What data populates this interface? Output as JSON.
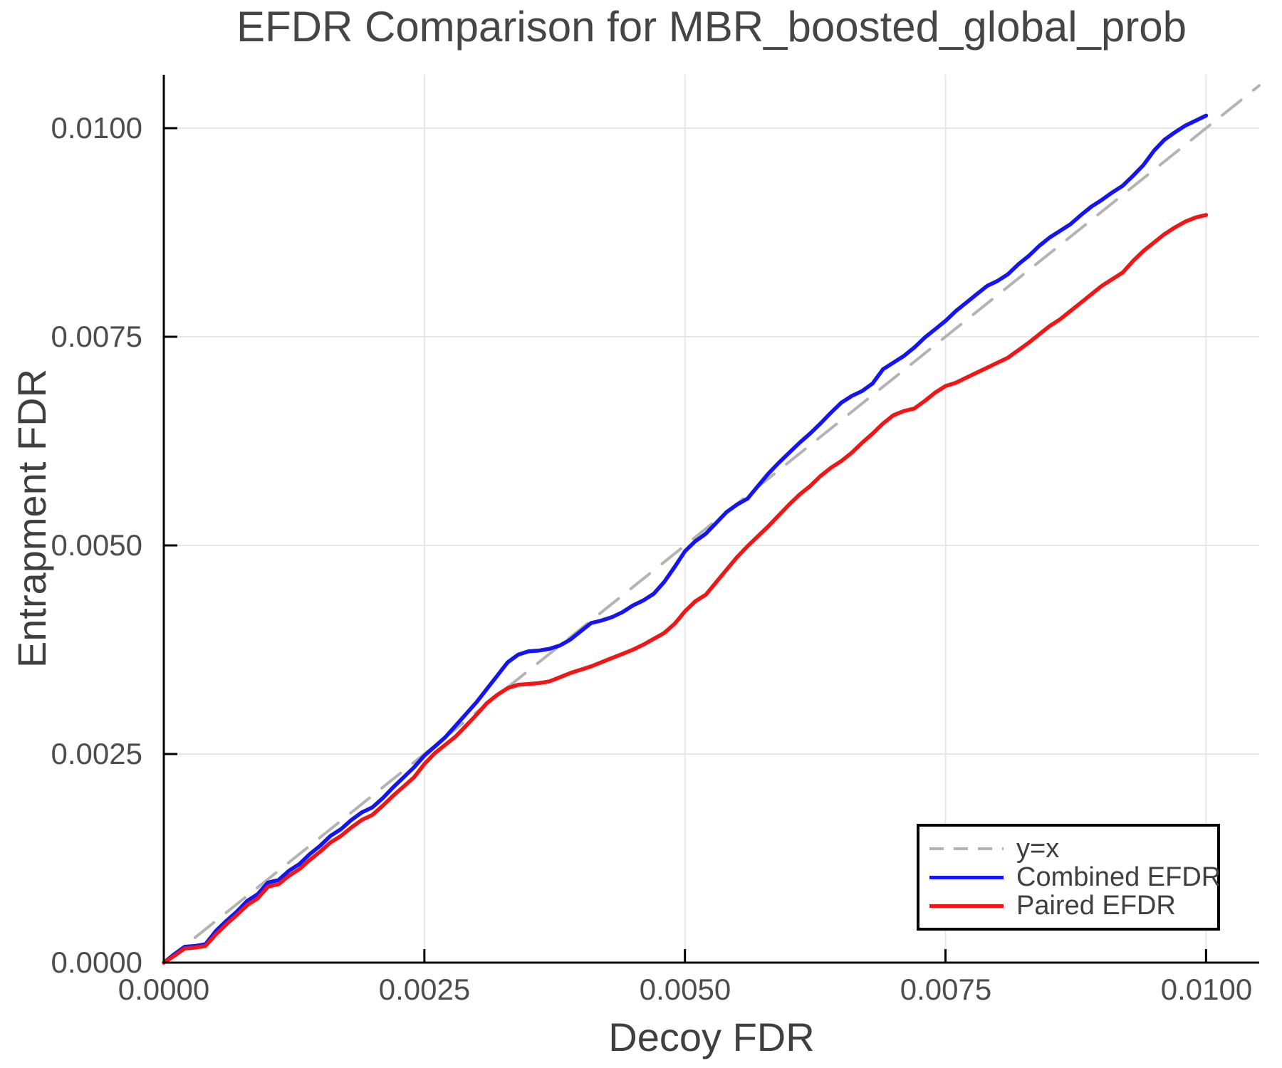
{
  "chart_data": {
    "type": "line",
    "title": "EFDR Comparison for MBR_boosted_global_prob",
    "xlabel": "Decoy FDR",
    "ylabel": "Entrapment FDR",
    "xlim": [
      0,
      0.01051
    ],
    "ylim": [
      0,
      0.01064
    ],
    "grid": true,
    "legend_position": "lower right",
    "x_ticks": [
      0,
      0.0025,
      0.005,
      0.0075,
      0.01
    ],
    "x_tick_labels": [
      "0.0000",
      "0.0025",
      "0.0050",
      "0.0075",
      "0.0100"
    ],
    "y_ticks": [
      0,
      0.0025,
      0.005,
      0.0075,
      0.01
    ],
    "y_tick_labels": [
      "0.0000",
      "0.0025",
      "0.0050",
      "0.0075",
      "0.0100"
    ],
    "colors": {
      "grid": "#e7e7e7",
      "spine": "#000000",
      "tick_text": "#4d4d4d",
      "reference": "#b3b3b3",
      "combined": "#1414f5",
      "paired": "#f51414"
    },
    "x": [
      0.0,
      0.0001,
      0.0002,
      0.0003,
      0.0004,
      0.0005,
      0.0006,
      0.0007,
      0.0008,
      0.0009,
      0.001,
      0.0011,
      0.0012,
      0.0013,
      0.0014,
      0.0015,
      0.0016,
      0.0017,
      0.0018,
      0.0019,
      0.002,
      0.0021,
      0.0022,
      0.0023,
      0.0024,
      0.0025,
      0.0026,
      0.0027,
      0.0028,
      0.0029,
      0.003,
      0.0031,
      0.0032,
      0.0033,
      0.0034,
      0.0035,
      0.0036,
      0.0037,
      0.0038,
      0.0039,
      0.004,
      0.0041,
      0.0042,
      0.0043,
      0.0044,
      0.0045,
      0.0046,
      0.0047,
      0.0048,
      0.0049,
      0.005,
      0.0051,
      0.0052,
      0.0053,
      0.0054,
      0.0055,
      0.0056,
      0.0057,
      0.0058,
      0.0059,
      0.006,
      0.0061,
      0.0062,
      0.0063,
      0.0064,
      0.0065,
      0.0066,
      0.0067,
      0.0068,
      0.0069,
      0.007,
      0.0071,
      0.0072,
      0.0073,
      0.0074,
      0.0075,
      0.0076,
      0.0077,
      0.0078,
      0.0079,
      0.008,
      0.0081,
      0.0082,
      0.0083,
      0.0084,
      0.0085,
      0.0086,
      0.0087,
      0.0088,
      0.0089,
      0.009,
      0.0091,
      0.0092,
      0.0093,
      0.0094,
      0.0095,
      0.0096,
      0.0097,
      0.0098,
      0.0099,
      0.01
    ],
    "series": [
      {
        "name": "y=x",
        "role": "reference",
        "style": "dashed",
        "color": "#b3b3b3",
        "width": 4,
        "dash": "34 22",
        "x": [
          0,
          0.01051
        ],
        "y": [
          0,
          0.01051
        ]
      },
      {
        "name": "Combined EFDR",
        "role": "data",
        "style": "solid",
        "color": "#1414f5",
        "width": 5.5,
        "y": [
          0.0,
          0.0001,
          0.00019,
          0.0002,
          0.00022,
          0.00038,
          0.0005,
          0.00061,
          0.00074,
          0.00082,
          0.00096,
          0.00099,
          0.0011,
          0.00118,
          0.0013,
          0.0014,
          0.00152,
          0.0016,
          0.00171,
          0.0018,
          0.00186,
          0.00197,
          0.0021,
          0.00222,
          0.00234,
          0.00248,
          0.00259,
          0.0027,
          0.00284,
          0.00298,
          0.00312,
          0.00328,
          0.00344,
          0.0036,
          0.00369,
          0.00373,
          0.00374,
          0.00376,
          0.0038,
          0.00387,
          0.00397,
          0.00407,
          0.0041,
          0.00414,
          0.0042,
          0.00428,
          0.00434,
          0.00442,
          0.00456,
          0.00474,
          0.00493,
          0.00505,
          0.00514,
          0.00527,
          0.0054,
          0.00549,
          0.00556,
          0.00571,
          0.00586,
          0.00599,
          0.00611,
          0.00623,
          0.00634,
          0.00646,
          0.00659,
          0.00671,
          0.00679,
          0.00685,
          0.00694,
          0.00711,
          0.00719,
          0.00727,
          0.00737,
          0.00749,
          0.00759,
          0.00769,
          0.00781,
          0.00791,
          0.00801,
          0.00811,
          0.00817,
          0.00825,
          0.00837,
          0.00847,
          0.00859,
          0.00869,
          0.00877,
          0.00885,
          0.00896,
          0.00906,
          0.00914,
          0.00923,
          0.00931,
          0.00943,
          0.00956,
          0.00973,
          0.00986,
          0.00995,
          0.01003,
          0.01009,
          0.01015
        ]
      },
      {
        "name": "Paired EFDR",
        "role": "data",
        "style": "solid",
        "color": "#f51414",
        "width": 5.5,
        "y": [
          0.0,
          8e-05,
          0.00017,
          0.00018,
          0.0002,
          0.00034,
          0.00046,
          0.00057,
          0.00069,
          0.00077,
          0.00091,
          0.00094,
          0.00104,
          0.00112,
          0.00123,
          0.00133,
          0.00144,
          0.00152,
          0.00162,
          0.00171,
          0.00177,
          0.00188,
          0.002,
          0.00211,
          0.00222,
          0.00238,
          0.00251,
          0.00261,
          0.00271,
          0.00284,
          0.00297,
          0.00311,
          0.00321,
          0.00329,
          0.00333,
          0.00334,
          0.00335,
          0.00337,
          0.00342,
          0.00347,
          0.00351,
          0.00355,
          0.0036,
          0.00365,
          0.0037,
          0.00375,
          0.00381,
          0.00388,
          0.00395,
          0.00406,
          0.00421,
          0.00433,
          0.00441,
          0.00456,
          0.00471,
          0.00486,
          0.00499,
          0.00511,
          0.00523,
          0.00536,
          0.00549,
          0.00561,
          0.00571,
          0.00583,
          0.00593,
          0.00601,
          0.00611,
          0.00623,
          0.00634,
          0.00646,
          0.00656,
          0.00661,
          0.00664,
          0.00673,
          0.00683,
          0.00691,
          0.00695,
          0.00701,
          0.00707,
          0.00713,
          0.00719,
          0.00725,
          0.00734,
          0.00743,
          0.00753,
          0.00763,
          0.00771,
          0.00781,
          0.00791,
          0.00801,
          0.00811,
          0.00819,
          0.00827,
          0.00841,
          0.00853,
          0.00863,
          0.00873,
          0.00881,
          0.00888,
          0.00893,
          0.00896
        ]
      }
    ],
    "legend": {
      "items": [
        {
          "label": "y=x"
        },
        {
          "label": "Combined EFDR"
        },
        {
          "label": "Paired EFDR"
        }
      ]
    }
  }
}
